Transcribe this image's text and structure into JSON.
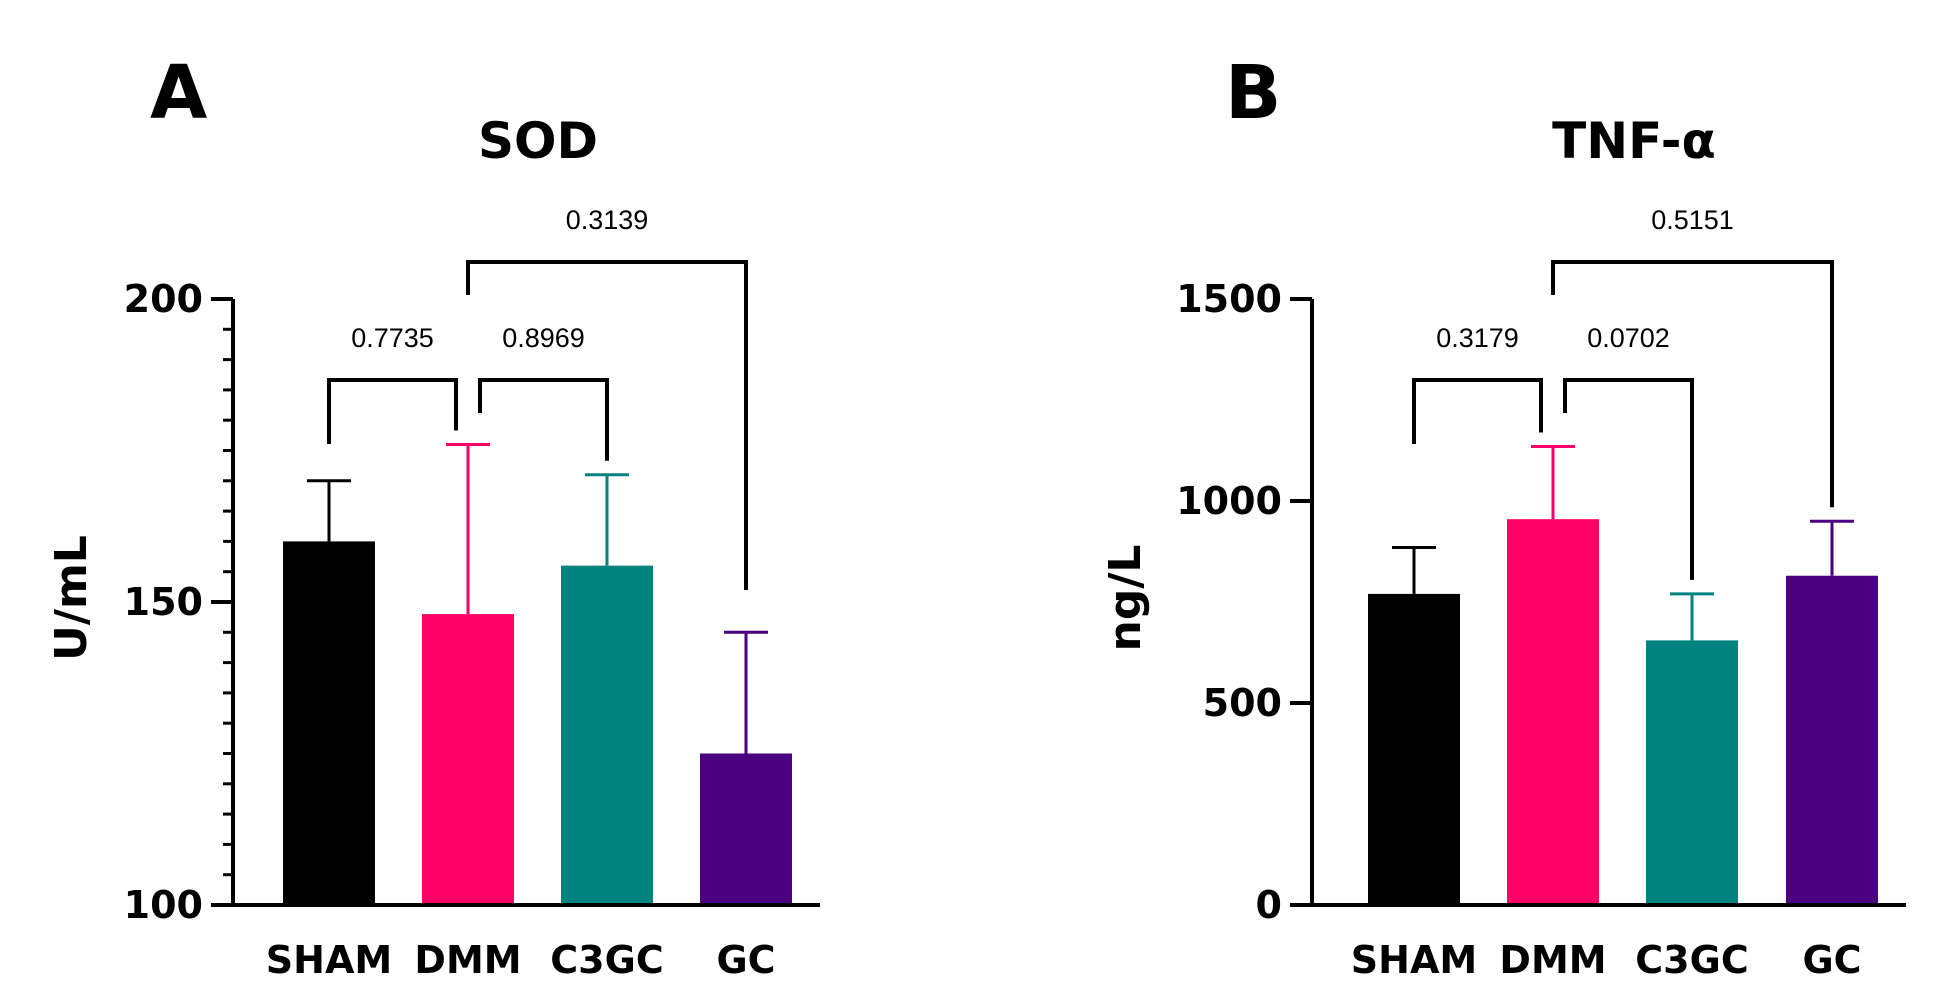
{
  "chart_data": [
    {
      "type": "bar",
      "panel": "A",
      "title": "SOD",
      "xlabel": "",
      "ylabel": "U/mL",
      "ylim": [
        100,
        200
      ],
      "yticks": [
        100,
        150,
        200
      ],
      "categories": [
        "SHAM",
        "DMM",
        "C3GC",
        "GC"
      ],
      "values": [
        160,
        148,
        156,
        125
      ],
      "errors": [
        10,
        28,
        15,
        20
      ],
      "colors": [
        "#000000",
        "#ff0066",
        "#00827f",
        "#4b0082"
      ],
      "comparisons": [
        {
          "from": 0,
          "to": 1,
          "label": "0.7735",
          "level": 1
        },
        {
          "from": 1,
          "to": 2,
          "label": "0.8969",
          "level": 1
        },
        {
          "from": 1,
          "to": 3,
          "label": "0.3139",
          "level": 2
        }
      ]
    },
    {
      "type": "bar",
      "panel": "B",
      "title": "TNF-α",
      "xlabel": "",
      "ylabel": "ng/L",
      "ylim": [
        0,
        1500
      ],
      "yticks": [
        0,
        500,
        1000,
        1500
      ],
      "categories": [
        "SHAM",
        "DMM",
        "C3GC",
        "GC"
      ],
      "values": [
        770,
        955,
        655,
        815
      ],
      "errors": [
        115,
        180,
        115,
        135
      ],
      "colors": [
        "#000000",
        "#ff0066",
        "#00827f",
        "#4b0082"
      ],
      "comparisons": [
        {
          "from": 0,
          "to": 1,
          "label": "0.3179",
          "level": 1
        },
        {
          "from": 1,
          "to": 2,
          "label": "0.0702",
          "level": 1
        },
        {
          "from": 1,
          "to": 3,
          "label": "0.5151",
          "level": 2
        }
      ]
    }
  ]
}
